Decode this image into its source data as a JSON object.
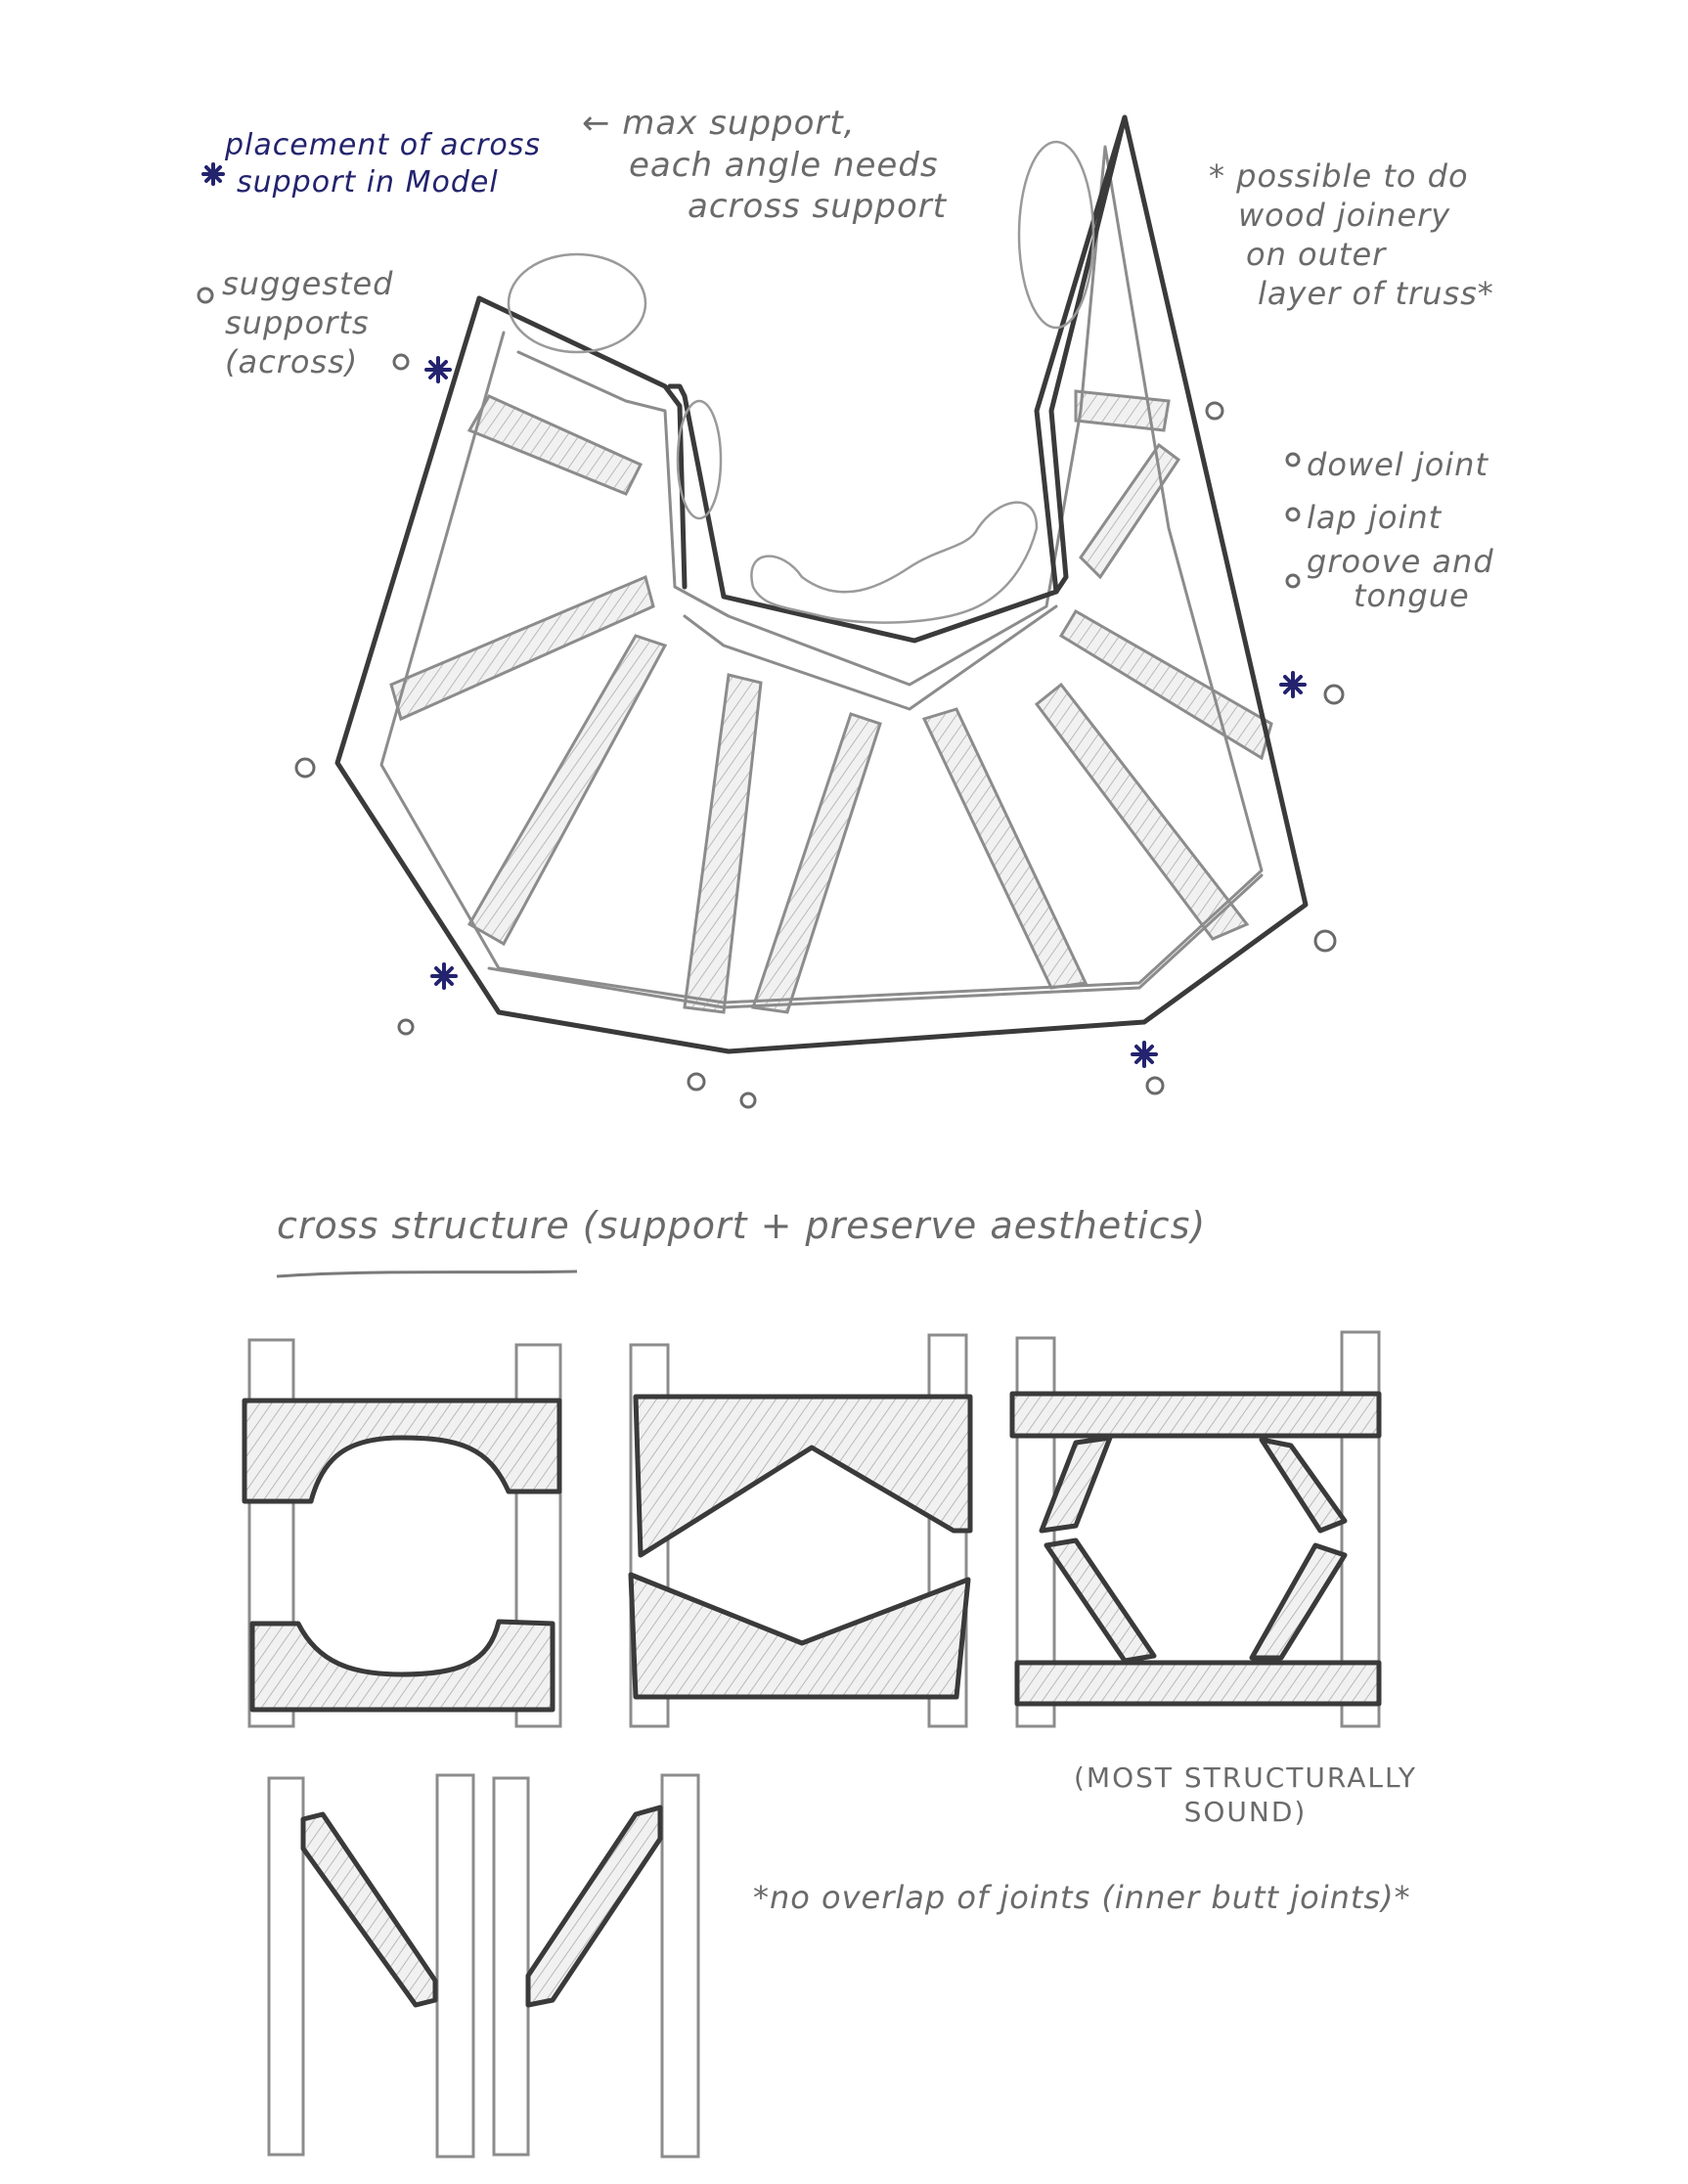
{
  "notes": {
    "model_placement": [
      "placement of across",
      "support in Model"
    ],
    "max_support": [
      "← max support,",
      "each angle needs",
      "across support"
    ],
    "suggested": [
      "suggested",
      "supports",
      "(across)"
    ],
    "wood_joinery": [
      "* possible to do",
      "wood joinery",
      "on outer",
      "layer of truss*"
    ],
    "joints": [
      "dowel joint",
      "lap joint",
      "groove and",
      "tongue"
    ],
    "cross_structure": "cross structure (support + preserve aesthetics)",
    "most_sound": [
      "(MOST STRUCTURALLY",
      "SOUND)"
    ],
    "no_overlap": "*no overlap of joints (inner butt joints)*"
  },
  "legend_markers": {
    "star": "*",
    "circle": "o"
  },
  "colors": {
    "ink_blue": "#23236e",
    "pencil_dark": "#3a3a3a",
    "pencil_light": "#8c8c8c",
    "paper": "#ffffff"
  }
}
